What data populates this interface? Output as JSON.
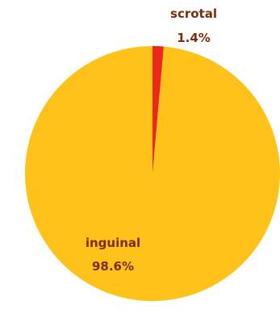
{
  "chart_data": {
    "type": "pie",
    "slices": [
      {
        "label": "inguinal",
        "value": 98.6,
        "value_label": "98.6%",
        "color": "#FFC21A"
      },
      {
        "label": "scrotal",
        "value": 1.4,
        "value_label": "1.4%",
        "color": "#E8291C"
      }
    ],
    "label_colors": {
      "inguinal": "#7A2E0E",
      "scrotal": "#7A2E0E"
    },
    "start_angle_deg": 0,
    "direction": "counterclockwise",
    "legend": "none"
  }
}
